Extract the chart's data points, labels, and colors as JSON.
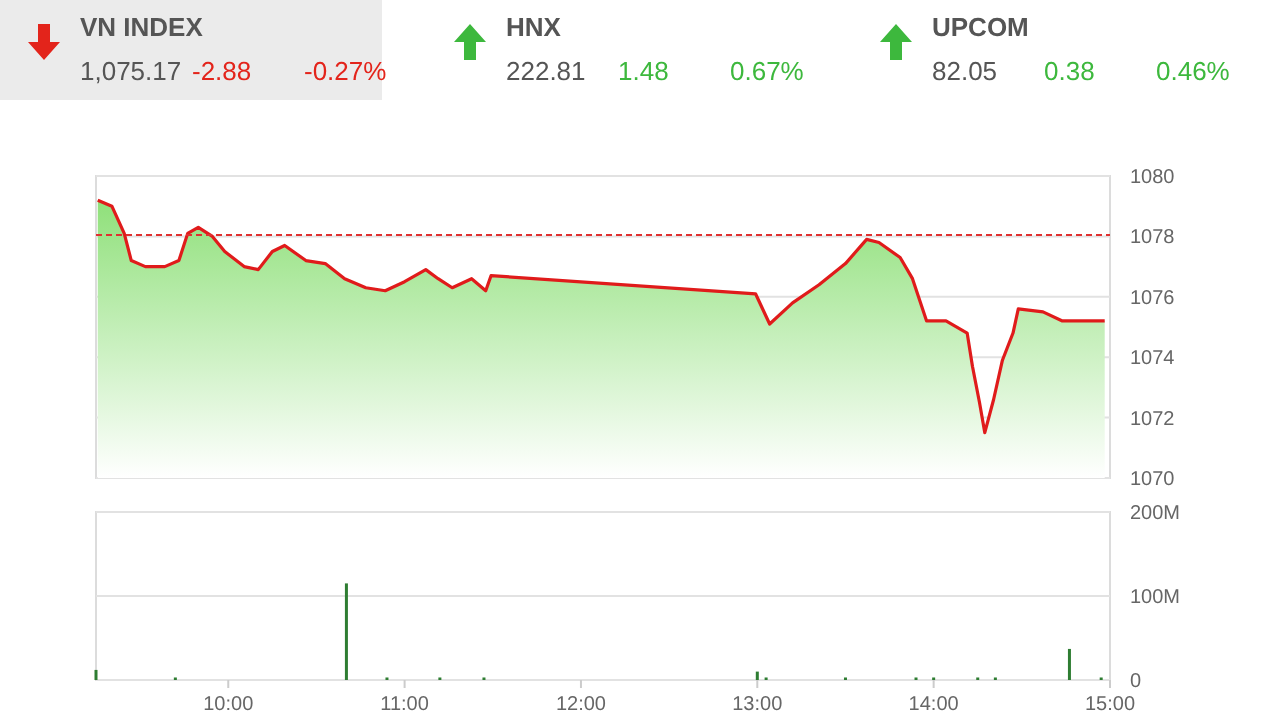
{
  "chart_data": [
    {
      "type": "other",
      "title": "VN INDEX",
      "color": "#e3241b",
      "annotations": [
        "1,075.17",
        "-2.88",
        "-0.27%"
      ]
    },
    {
      "type": "other",
      "title": "HNX",
      "color": "#3db83d",
      "annotations": [
        "222.81",
        "1.48",
        "0.67%"
      ]
    },
    {
      "type": "other",
      "title": "UPCOM",
      "color": "#3db83d",
      "annotations": [
        "82.05",
        "0.38",
        "0.46%"
      ]
    },
    {
      "type": "area",
      "x": [
        9.26,
        9.34,
        9.41,
        9.45,
        9.53,
        9.64,
        9.72,
        9.77,
        9.83,
        9.91,
        9.98,
        10.09,
        10.17,
        10.25,
        10.32,
        10.44,
        10.55,
        10.66,
        10.78,
        10.89,
        11.0,
        11.12,
        11.19,
        11.27,
        11.38,
        11.46,
        11.49,
        12.99,
        13.07,
        13.2,
        13.35,
        13.5,
        13.62,
        13.69,
        13.81,
        13.88,
        13.96,
        14.07,
        14.19,
        14.22,
        14.26,
        14.29,
        14.34,
        14.39,
        14.45,
        14.48,
        14.62,
        14.73,
        14.97
      ],
      "series": [
        {
          "color": "#e01b1b",
          "values": [
            1079.2,
            1079.0,
            1078.1,
            1077.2,
            1077.0,
            1077.0,
            1077.2,
            1078.1,
            1078.3,
            1078.0,
            1077.5,
            1077.0,
            1076.9,
            1077.5,
            1077.7,
            1077.2,
            1077.1,
            1076.6,
            1076.3,
            1076.2,
            1076.5,
            1076.9,
            1076.6,
            1076.3,
            1076.6,
            1076.2,
            1076.7,
            1076.1,
            1075.1,
            1075.8,
            1076.4,
            1077.1,
            1077.9,
            1077.8,
            1077.3,
            1076.6,
            1075.2,
            1075.2,
            1074.8,
            1073.7,
            1072.5,
            1071.5,
            1072.6,
            1073.9,
            1074.8,
            1075.6,
            1075.5,
            1075.2,
            1075.2
          ]
        }
      ],
      "xlim": [
        9.25,
        15
      ],
      "ylim": [
        1070,
        1080
      ],
      "yticks": [
        1070,
        1072,
        1074,
        1076,
        1078,
        1080
      ],
      "grid": "y",
      "tick_labels": "y",
      "ref_lines": [
        {
          "axis": "y",
          "value": 1078.05,
          "color": "#e03030",
          "line_style": "dashed"
        }
      ]
    },
    {
      "type": "bar",
      "x": [
        9.25,
        9.7,
        10.67,
        10.9,
        11.2,
        11.45,
        13.0,
        13.05,
        13.5,
        13.9,
        14.0,
        14.25,
        14.35,
        14.77,
        14.95
      ],
      "values": [
        12,
        3,
        115,
        3,
        3,
        3,
        10,
        3,
        3,
        3,
        3,
        3,
        3,
        37,
        3
      ],
      "color": "#2e7d32",
      "xlim": [
        9.25,
        15
      ],
      "xticks": [
        {
          "value": 10,
          "label": "10:00"
        },
        {
          "value": 11,
          "label": "11:00"
        },
        {
          "value": 12,
          "label": "12:00"
        },
        {
          "value": 13,
          "label": "13:00"
        },
        {
          "value": 14,
          "label": "14:00"
        },
        {
          "value": 15,
          "label": "15:00"
        }
      ],
      "ylim": [
        0,
        200
      ],
      "yticks": [
        0,
        {
          "value": 100,
          "label": "100M"
        },
        {
          "value": 200,
          "label": "200M"
        }
      ],
      "grid": "y"
    }
  ]
}
